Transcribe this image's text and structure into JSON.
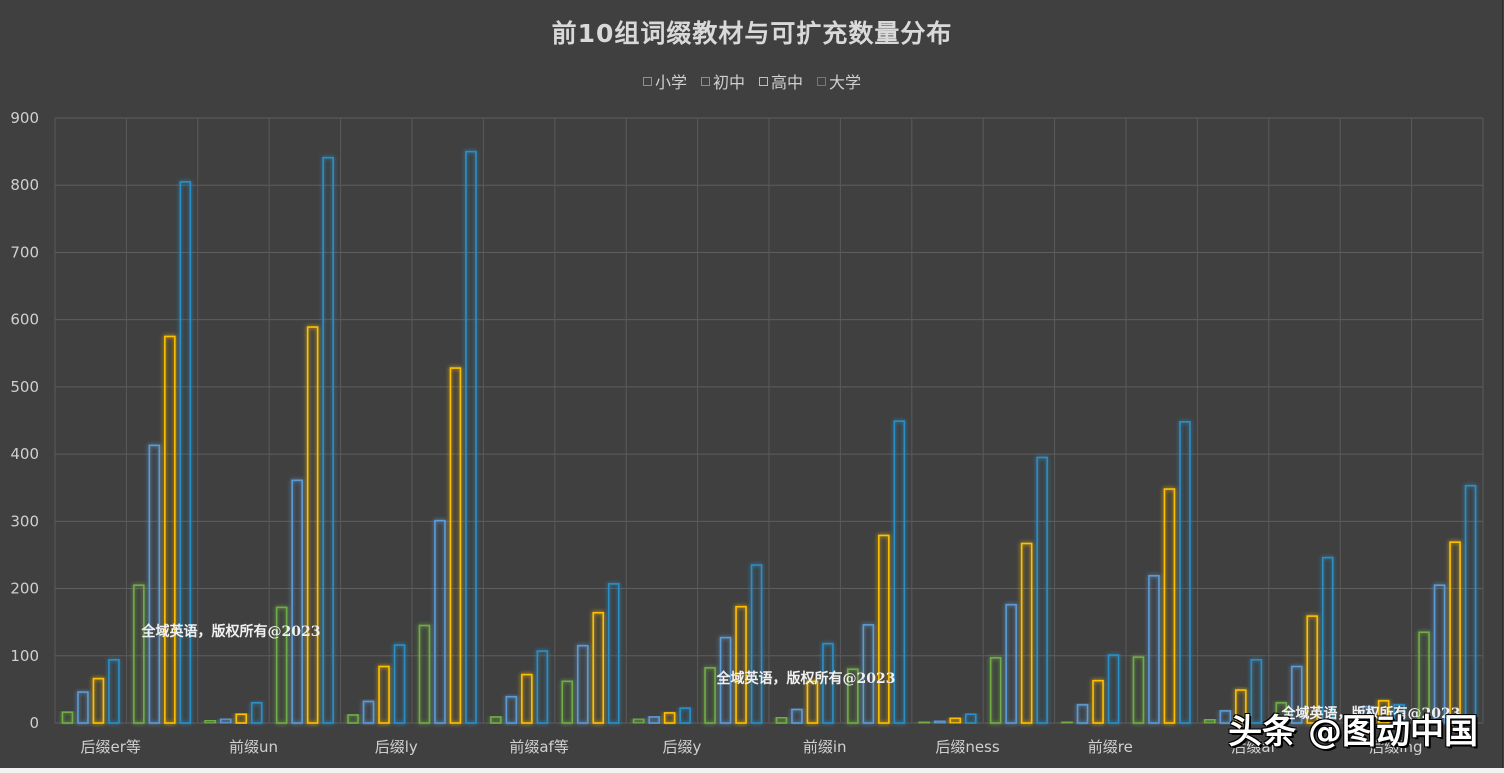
{
  "chart_data": {
    "type": "bar",
    "title": "前10组词缀教材与可扩充数量分布",
    "xlabel": "",
    "ylabel": "",
    "ylim": [
      0,
      900
    ],
    "yticks": [
      0,
      100,
      200,
      300,
      400,
      500,
      600,
      700,
      800,
      900
    ],
    "grid": true,
    "legend_position": "top",
    "categories": [
      "后缀er等",
      "",
      "前缀un",
      "",
      "后缀ly",
      "",
      "前缀af等",
      "",
      "后缀y",
      "",
      "前缀in",
      "",
      "后缀ness",
      "",
      "前缀re",
      "",
      "后缀al",
      "",
      "后缀ing",
      ""
    ],
    "series": [
      {
        "name": "小学",
        "color": "#70ad47",
        "values": [
          16,
          205,
          4,
          172,
          12,
          145,
          9,
          62,
          6,
          82,
          8,
          80,
          0,
          97,
          2,
          98,
          5,
          30,
          10,
          135
        ]
      },
      {
        "name": "初中",
        "color": "#5b9bd5",
        "values": [
          46,
          413,
          6,
          361,
          32,
          301,
          39,
          115,
          9,
          127,
          20,
          146,
          3,
          176,
          27,
          219,
          18,
          84,
          24,
          205
        ]
      },
      {
        "name": "高中",
        "color": "#ffc000",
        "values": [
          66,
          575,
          13,
          589,
          84,
          528,
          72,
          164,
          15,
          173,
          62,
          279,
          7,
          267,
          63,
          348,
          49,
          159,
          33,
          269
        ]
      },
      {
        "name": "大学",
        "color": "#2a8fc7",
        "values": [
          94,
          805,
          30,
          841,
          116,
          850,
          107,
          207,
          22,
          235,
          118,
          449,
          13,
          395,
          101,
          448,
          94,
          246,
          27,
          353
        ]
      }
    ],
    "annotations": [
      "全域英语，版权所有@2023"
    ]
  },
  "watermarks": {
    "copyright": "全域英语，版权所有@2023",
    "brand": "头条 @图动中国"
  }
}
